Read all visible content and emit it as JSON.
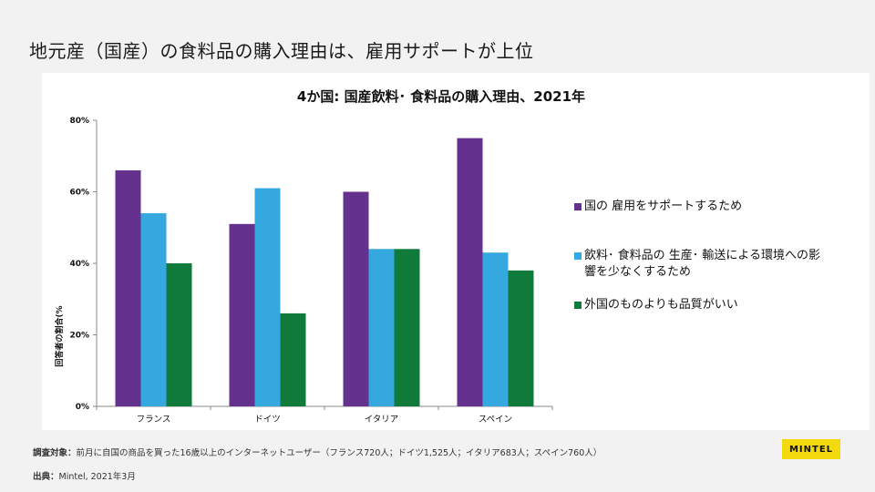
{
  "slide": {
    "title": "地元産（国産）の食料品の購入理由は、雇用サポートが上位"
  },
  "footer": {
    "sample_key": "調査対象：",
    "sample_text": "前月に自国の商品を買った16歳以上のインターネットユーザー（フランス720人；ドイツ1,525人；イタリア683人；スペイン760人）",
    "source_key": "出典：",
    "source_text": "Mintel, 2021年3月"
  },
  "logo": {
    "text": "MINTEL",
    "color": "#f4d90e"
  },
  "chart_data": {
    "type": "bar",
    "title": "4か国: 国産飲料･ 食料品の購入理由、2021年",
    "ylabel": "回答者の割合(%",
    "xlabel": "",
    "categories": [
      "フランス",
      "ドイツ",
      "イタリア",
      "スペイン"
    ],
    "ylim": [
      0,
      80
    ],
    "yticks": [
      0,
      20,
      40,
      60,
      80
    ],
    "ytick_labels": [
      "0%",
      "20%",
      "40%",
      "60%",
      "80%"
    ],
    "legend_position": "right",
    "grid": false,
    "series": [
      {
        "name": "国の 雇用をサポートするため",
        "color": "#65318e",
        "values": [
          66,
          51,
          60,
          75
        ]
      },
      {
        "name": "飲料･ 食料品の 生産･ 輸送による環境への影響を少なくするため",
        "color": "#35a8e0",
        "values": [
          54,
          61,
          44,
          43
        ]
      },
      {
        "name": "外国のものよりも品質がいい",
        "color": "#0f7a3a",
        "values": [
          40,
          26,
          44,
          38
        ]
      }
    ]
  }
}
